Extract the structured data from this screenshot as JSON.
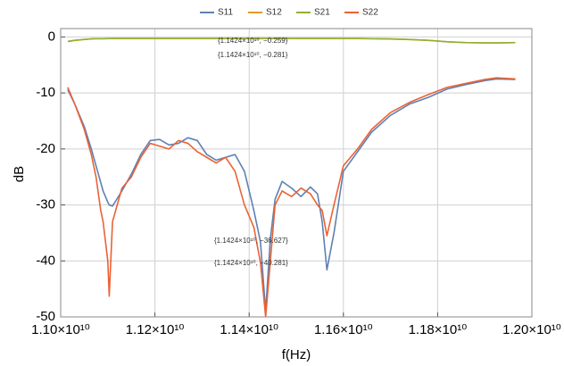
{
  "chart_data": {
    "type": "line",
    "xlabel": "f(Hz)",
    "ylabel": "dB",
    "x": [
      11015000000.0,
      11030000000.0,
      11050000000.0,
      11065000000.0,
      11075000000.0,
      11080000000.0,
      11085000000.0,
      11090000000.0,
      11100000000.0,
      11103000000.0,
      11110000000.0,
      11130000000.0,
      11150000000.0,
      11170000000.0,
      11190000000.0,
      11210000000.0,
      11230000000.0,
      11250000000.0,
      11270000000.0,
      11290000000.0,
      11310000000.0,
      11330000000.0,
      11350000000.0,
      11370000000.0,
      11390000000.0,
      11410000000.0,
      11424000000.0,
      11435000000.0,
      11445000000.0,
      11455000000.0,
      11470000000.0,
      11490000000.0,
      11510000000.0,
      11530000000.0,
      11545000000.0,
      11555000000.0,
      11565000000.0,
      11580000000.0,
      11600000000.0,
      11630000000.0,
      11660000000.0,
      11700000000.0,
      11740000000.0,
      11780000000.0,
      11820000000.0,
      11860000000.0,
      11900000000.0,
      11925000000.0,
      11965000000.0
    ],
    "series": [
      {
        "name": "S11",
        "color": "#5e81b5",
        "values": [
          -9.4,
          -12,
          -16,
          -20,
          -23,
          -24.5,
          -26,
          -27.5,
          -29.5,
          -30,
          -30.2,
          -27.5,
          -24.5,
          -21,
          -18.5,
          -18.3,
          -19.3,
          -19,
          -18,
          -18.5,
          -21,
          -22,
          -21.5,
          -21,
          -24,
          -31,
          -36.6,
          -49,
          -36,
          -29,
          -25.8,
          -27,
          -28.5,
          -26.8,
          -28,
          -33,
          -41.6,
          -35,
          -24,
          -20.5,
          -17,
          -14,
          -12,
          -10.8,
          -9.3,
          -8.5,
          -7.8,
          -7.5,
          -7.6
        ]
      },
      {
        "name": "S12",
        "color": "#e19c24",
        "values": [
          -0.8,
          -0.6,
          -0.45,
          -0.35,
          -0.3,
          -0.3,
          -0.3,
          -0.3,
          -0.28,
          -0.28,
          -0.27,
          -0.27,
          -0.27,
          -0.27,
          -0.27,
          -0.27,
          -0.27,
          -0.27,
          -0.27,
          -0.27,
          -0.27,
          -0.27,
          -0.27,
          -0.27,
          -0.27,
          -0.27,
          -0.26,
          -0.26,
          -0.26,
          -0.26,
          -0.26,
          -0.26,
          -0.26,
          -0.26,
          -0.26,
          -0.26,
          -0.26,
          -0.26,
          -0.26,
          -0.27,
          -0.3,
          -0.35,
          -0.45,
          -0.6,
          -0.85,
          -1.0,
          -1.05,
          -1.05,
          -1.0
        ]
      },
      {
        "name": "S21",
        "color": "#8fb032",
        "values": [
          -0.8,
          -0.6,
          -0.45,
          -0.35,
          -0.3,
          -0.3,
          -0.3,
          -0.3,
          -0.28,
          -0.28,
          -0.28,
          -0.28,
          -0.28,
          -0.28,
          -0.28,
          -0.28,
          -0.28,
          -0.28,
          -0.28,
          -0.28,
          -0.28,
          -0.28,
          -0.28,
          -0.28,
          -0.28,
          -0.28,
          -0.28,
          -0.28,
          -0.28,
          -0.28,
          -0.28,
          -0.28,
          -0.28,
          -0.28,
          -0.28,
          -0.28,
          -0.28,
          -0.28,
          -0.28,
          -0.29,
          -0.31,
          -0.36,
          -0.46,
          -0.61,
          -0.86,
          -1.01,
          -1.06,
          -1.06,
          -1.01
        ]
      },
      {
        "name": "S22",
        "color": "#eb6235",
        "values": [
          -9,
          -12,
          -16.5,
          -21,
          -25,
          -28,
          -31,
          -33,
          -40,
          -46.3,
          -33,
          -27,
          -25,
          -21.5,
          -19,
          -19.5,
          -20,
          -18.5,
          -19,
          -20.5,
          -21.5,
          -22.5,
          -21.5,
          -24,
          -30,
          -34,
          -40.3,
          -50,
          -40,
          -30,
          -27.5,
          -28.5,
          -27,
          -28,
          -30,
          -31,
          -35.5,
          -30,
          -23,
          -20,
          -16.5,
          -13.5,
          -11.7,
          -10.3,
          -9,
          -8.3,
          -7.6,
          -7.3,
          -7.5
        ]
      }
    ],
    "xlim": [
      11000000000.0,
      12000000000.0
    ],
    "xticks": [
      {
        "value": 11000000000.0,
        "label": "1.10×10¹⁰"
      },
      {
        "value": 11200000000.0,
        "label": "1.12×10¹⁰"
      },
      {
        "value": 11400000000.0,
        "label": "1.14×10¹⁰"
      },
      {
        "value": 11600000000.0,
        "label": "1.16×10¹⁰"
      },
      {
        "value": 11800000000.0,
        "label": "1.18×10¹⁰"
      },
      {
        "value": 12000000000.0,
        "label": "1.20×10¹⁰"
      }
    ],
    "ylim": [
      -50,
      1.5
    ],
    "yticks": [
      0,
      -10,
      -20,
      -30,
      -40,
      -50
    ],
    "grid": true,
    "legend": "top",
    "annotations": [
      "{1.1424×10¹⁰, −0.259}",
      "{1.1424×10¹⁰, −0.281}",
      "{1.1424×10¹⁰, −36.627}",
      "{1.1424×10¹⁰, −40.281}"
    ]
  }
}
